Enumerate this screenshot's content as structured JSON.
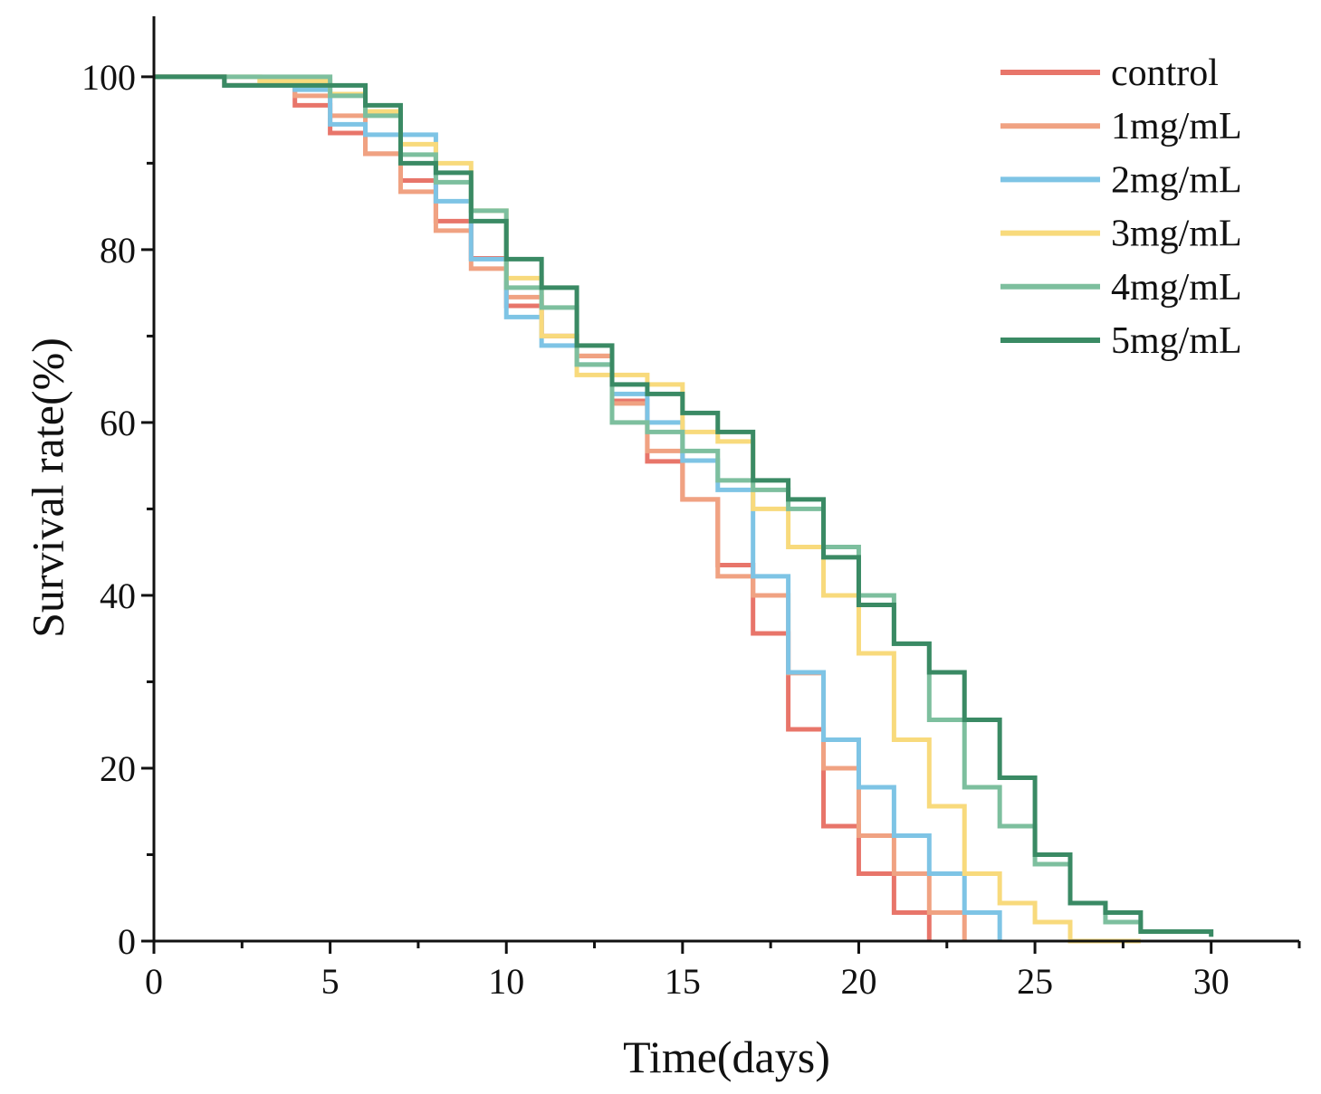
{
  "chart_data": {
    "type": "line",
    "title": "",
    "xlabel": "Time(days)",
    "ylabel": "Survival rate(%)",
    "xlim": [
      0,
      32.5
    ],
    "ylim": [
      0,
      107
    ],
    "xticks": [
      0,
      5,
      10,
      15,
      20,
      25,
      30
    ],
    "yticks": [
      0,
      20,
      40,
      60,
      80,
      100
    ],
    "grid": false,
    "legend_position": "top-right",
    "series": [
      {
        "name": "control",
        "color": "#e8756a",
        "x": [
          0,
          2,
          4,
          5,
          6,
          7,
          8,
          9,
          10,
          11,
          12,
          13,
          14,
          15,
          16,
          17,
          18,
          19,
          20,
          21,
          22
        ],
        "y": [
          100,
          99,
          96.7,
          93.5,
          91.1,
          88,
          83.3,
          79,
          73.5,
          70,
          67.7,
          62.5,
          55.5,
          51.1,
          43.5,
          35.6,
          24.5,
          13.3,
          7.8,
          3.3,
          0
        ]
      },
      {
        "name": "1mg/mL",
        "color": "#f0a282",
        "x": [
          0,
          2,
          4,
          5,
          6,
          7,
          8,
          9,
          10,
          11,
          12,
          13,
          14,
          15,
          16,
          17,
          18,
          19,
          20,
          21,
          22,
          23
        ],
        "y": [
          100,
          99,
          97.8,
          95.5,
          91.1,
          86.7,
          82.2,
          77.8,
          74.5,
          70,
          67.7,
          62.2,
          56.7,
          51.1,
          42.2,
          40,
          31,
          20,
          12.2,
          7.8,
          3.3,
          0
        ]
      },
      {
        "name": "2mg/mL",
        "color": "#7ec4e5",
        "x": [
          0,
          2,
          4,
          5,
          6,
          7,
          8,
          9,
          10,
          11,
          12,
          13,
          14,
          15,
          16,
          17,
          18,
          19,
          20,
          21,
          22,
          23,
          24
        ],
        "y": [
          100,
          99,
          98.5,
          94.5,
          93.3,
          93.3,
          85.6,
          78.9,
          72.2,
          68.9,
          66.7,
          63.3,
          60,
          55.6,
          52.2,
          42.2,
          31.1,
          23.3,
          17.8,
          12.2,
          7.8,
          3.3,
          0
        ]
      },
      {
        "name": "3mg/mL",
        "color": "#f8da7c",
        "x": [
          0,
          3,
          5,
          6,
          7,
          8,
          9,
          10,
          11,
          12,
          13,
          14,
          15,
          16,
          17,
          18,
          19,
          20,
          21,
          22,
          23,
          24,
          25,
          26,
          28
        ],
        "y": [
          100,
          99.5,
          98,
          96,
          92.2,
          90,
          84.5,
          76.7,
          70,
          65.5,
          65.5,
          64.4,
          58.9,
          57.8,
          50,
          45.6,
          40,
          33.3,
          23.3,
          15.6,
          7.8,
          4.4,
          2.2,
          0,
          0
        ]
      },
      {
        "name": "4mg/mL",
        "color": "#7dbf9e",
        "x": [
          0,
          5,
          6,
          7,
          8,
          9,
          10,
          11,
          12,
          13,
          14,
          15,
          16,
          17,
          18,
          19,
          20,
          21,
          22,
          23,
          24,
          25,
          26,
          27,
          28
        ],
        "y": [
          100,
          97.8,
          95.5,
          91,
          87.8,
          84.5,
          75.6,
          73.3,
          66.7,
          60,
          58.9,
          56.7,
          53.3,
          52.2,
          50,
          45.6,
          40,
          34.4,
          25.6,
          17.8,
          13.3,
          8.9,
          4.4,
          2.2,
          1.1
        ]
      },
      {
        "name": "5mg/mL",
        "color": "#3a8a64",
        "x": [
          0,
          2,
          6,
          7,
          8,
          9,
          10,
          11,
          12,
          13,
          14,
          15,
          16,
          17,
          18,
          19,
          20,
          21,
          22,
          23,
          24,
          25,
          26,
          27,
          28,
          30
        ],
        "y": [
          100,
          99,
          96.7,
          90,
          88.9,
          83.3,
          78.9,
          75.6,
          68.9,
          64.4,
          63.3,
          61.1,
          58.9,
          53.3,
          51.1,
          44.4,
          38.9,
          34.4,
          31.1,
          25.6,
          18.9,
          10,
          4.4,
          3.3,
          1.1,
          0.5
        ]
      }
    ]
  }
}
